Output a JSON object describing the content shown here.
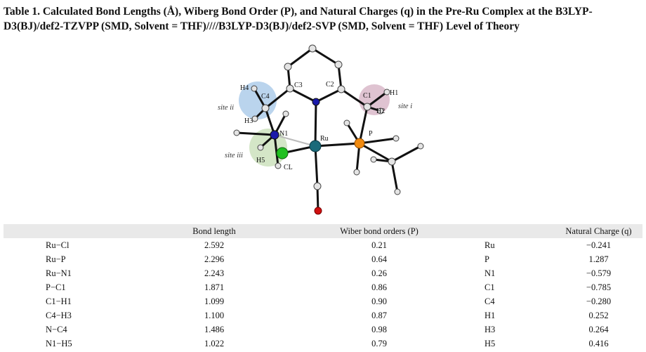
{
  "caption": {
    "label": "Table 1.",
    "text": "Calculated Bond Lengths (Å), Wiberg Bond Order (P), and Natural Charges (q) in the Pre-Ru Complex at the B3LYP-D3(BJ)/def2-TZVPP (SMD, Solvent = THF)////B3LYP-D3(BJ)/def2-SVP (SMD, Solvent = THF) Level of Theory"
  },
  "figure": {
    "atoms": {
      "c1": "C1",
      "c2": "C2",
      "c3": "C3",
      "c4": "C4",
      "h1": "H1",
      "h2": "H2",
      "h3": "H3",
      "h4": "H4",
      "h5": "H5",
      "n1": "N1",
      "ru": "Ru",
      "p": "P",
      "cl": "CL"
    },
    "sites": {
      "site_i": "site i",
      "site_ii": "site ii",
      "site_iii": "site iii"
    },
    "colors": {
      "site_i": "#d9b9c9",
      "site_ii": "#a9c9e9",
      "site_iii": "#c9e0b9",
      "ru": "#1a6a7a",
      "p": "#f08a10",
      "cl": "#20c020",
      "n": "#1a1aaa",
      "o": "#d01010"
    }
  },
  "table": {
    "headers": [
      "",
      "Bond length",
      "Wiber bond orders (P)",
      "",
      "Natural Charge (q)"
    ],
    "rows": [
      {
        "bond": "Ru−Cl",
        "length": "2.592",
        "wiberg": "0.21",
        "atom": "Ru",
        "charge": "−0.241"
      },
      {
        "bond": "Ru−P",
        "length": "2.296",
        "wiberg": "0.64",
        "atom": "P",
        "charge": "1.287"
      },
      {
        "bond": "Ru−N1",
        "length": "2.243",
        "wiberg": "0.26",
        "atom": "N1",
        "charge": "−0.579"
      },
      {
        "bond": "P−C1",
        "length": "1.871",
        "wiberg": "0.86",
        "atom": "C1",
        "charge": "−0.785"
      },
      {
        "bond": "C1−H1",
        "length": "1.099",
        "wiberg": "0.90",
        "atom": "C4",
        "charge": "−0.280"
      },
      {
        "bond": "C4−H3",
        "length": "1.100",
        "wiberg": "0.87",
        "atom": "H1",
        "charge": "0.252"
      },
      {
        "bond": "N−C4",
        "length": "1.486",
        "wiberg": "0.98",
        "atom": "H3",
        "charge": "0.264"
      },
      {
        "bond": "N1−H5",
        "length": "1.022",
        "wiberg": "0.79",
        "atom": "H5",
        "charge": "0.416"
      }
    ]
  }
}
